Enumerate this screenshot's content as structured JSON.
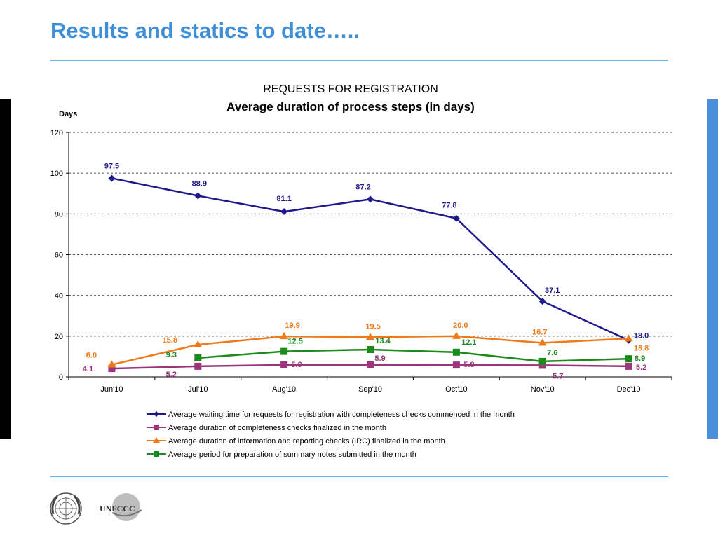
{
  "slide": {
    "title": "Results and statics to date….."
  },
  "chart_data": {
    "type": "line",
    "title": "REQUESTS FOR REGISTRATION",
    "subtitle": "Average duration of process steps (in days)",
    "ylabel": "Days",
    "xlabel": "",
    "ylim": [
      0,
      120
    ],
    "yticks": [
      0,
      20,
      40,
      60,
      80,
      100,
      120
    ],
    "grid": true,
    "legend_position": "bottom",
    "categories": [
      "Jun'10",
      "Jul'10",
      "Aug'10",
      "Sep'10",
      "Oct'10",
      "Nov'10",
      "Dec'10"
    ],
    "series": [
      {
        "name": "Average waiting time for requests for registration with completeness checks commenced in the month",
        "color": "#1f1a8c",
        "marker": "diamond",
        "values": [
          97.5,
          88.9,
          81.1,
          87.2,
          77.8,
          37.1,
          18.0
        ],
        "labels": [
          "97.5",
          "88.9",
          "81.1",
          "87.2",
          "77.8",
          "37.1",
          "18.0"
        ]
      },
      {
        "name": "Average duration of completeness checks finalized in the month",
        "color": "#9b3478",
        "marker": "square",
        "values": [
          4.1,
          5.2,
          5.9,
          5.9,
          5.8,
          5.7,
          5.2
        ],
        "labels": [
          "4.1",
          "5.2",
          "5.9",
          "5.9",
          "5.8",
          "5.7",
          "5.2"
        ]
      },
      {
        "name": "Average duration of information and reporting checks (IRC) finalized in the month",
        "color": "#f07a1a",
        "marker": "triangle",
        "values": [
          6.0,
          15.8,
          19.9,
          19.5,
          20.0,
          16.7,
          18.8
        ],
        "labels": [
          "6.0",
          "15.8",
          "19.9",
          "19.5",
          "20.0",
          "16.7",
          "18.8"
        ]
      },
      {
        "name": "Average period for preparation of summary notes submitted in the month",
        "color": "#1a8a1a",
        "marker": "square",
        "values": [
          null,
          9.3,
          12.5,
          13.4,
          12.1,
          7.6,
          8.9
        ],
        "labels": [
          "",
          "9.3",
          "12.5",
          "13.4",
          "12.1",
          "7.6",
          "8.9"
        ]
      }
    ]
  },
  "footer": {
    "logo_un": "un-emblem",
    "logo_unfccc": "UNFCCC"
  }
}
